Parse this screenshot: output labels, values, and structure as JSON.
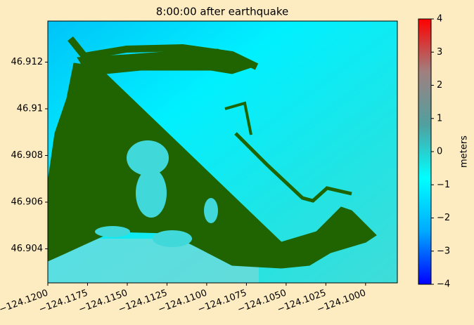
{
  "chart_data": {
    "type": "heatmap",
    "title": "8:00:00 after earthquake",
    "xlim": [
      -124.12,
      -124.098
    ],
    "xticks": [
      {
        "value": -124.12,
        "label": "−124.1200"
      },
      {
        "value": -124.1175,
        "label": "−124.1175"
      },
      {
        "value": -124.115,
        "label": "−124.1150"
      },
      {
        "value": -124.1125,
        "label": "−124.1125"
      },
      {
        "value": -124.11,
        "label": "−124.1100"
      },
      {
        "value": -124.1075,
        "label": "−124.1075"
      },
      {
        "value": -124.105,
        "label": "−124.1050"
      },
      {
        "value": -124.1025,
        "label": "−124.1025"
      },
      {
        "value": -124.1,
        "label": "−124.1000"
      }
    ],
    "ylim": [
      46.90254,
      46.91376
    ],
    "yticks": [
      46.904,
      46.906,
      46.908,
      46.91,
      46.912
    ],
    "colorbar": {
      "label": "meters",
      "lim": [
        -4,
        4
      ],
      "ticks": [
        {
          "value": -4,
          "label": "−4"
        },
        {
          "value": -3,
          "label": "−3"
        },
        {
          "value": -2,
          "label": "−2"
        },
        {
          "value": -1,
          "label": "−1"
        },
        0,
        1,
        2,
        3,
        4
      ],
      "colormap": [
        "#0000ff",
        "#00aaff",
        "#00ffff",
        "#50a0a0",
        "#a08080",
        "#ff0000"
      ]
    }
  }
}
